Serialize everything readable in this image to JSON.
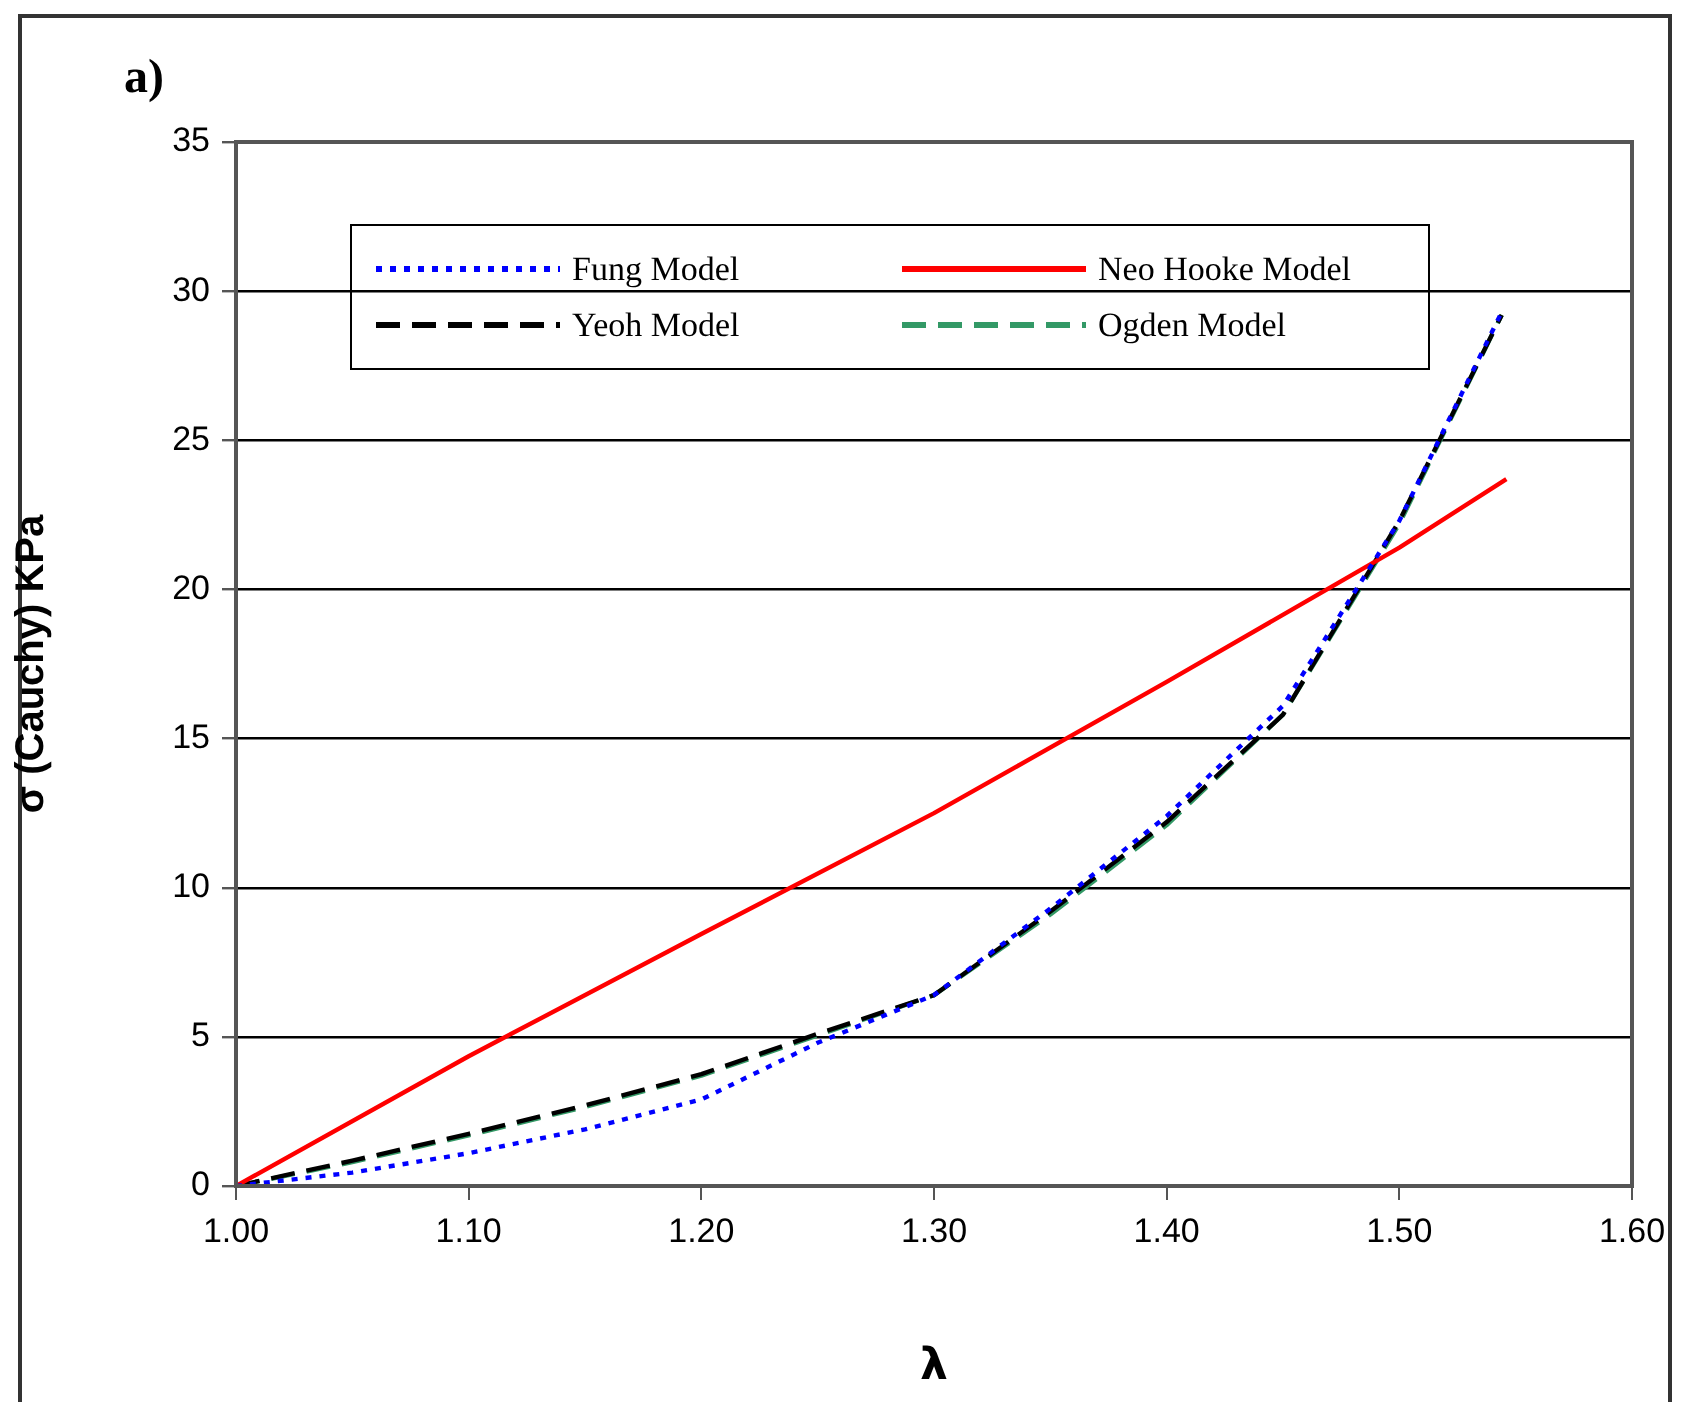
{
  "chart_data": {
    "type": "line",
    "xlabel": "λ",
    "ylabel": "σ (Cauchy) KPa",
    "annotations": [
      "a)"
    ],
    "xlim": [
      1.0,
      1.6
    ],
    "xticks": [
      {
        "value": 1.0,
        "label": "1.00"
      },
      {
        "value": 1.1,
        "label": "1.10"
      },
      {
        "value": 1.2,
        "label": "1.20"
      },
      {
        "value": 1.3,
        "label": "1.30"
      },
      {
        "value": 1.4,
        "label": "1.40"
      },
      {
        "value": 1.5,
        "label": "1.50"
      },
      {
        "value": 1.6,
        "label": "1.60"
      }
    ],
    "ylim": [
      0,
      35
    ],
    "yticks": [
      0,
      5,
      10,
      15,
      20,
      25,
      30,
      35
    ],
    "grid": "y",
    "legend": "top",
    "marker": "none",
    "series": [
      {
        "name": "Fung Model",
        "color": "#0000ff",
        "line_style": "dotted",
        "x": [
          1.0,
          1.05,
          1.1,
          1.15,
          1.2,
          1.25,
          1.3,
          1.35,
          1.4,
          1.45,
          1.5,
          1.544
        ],
        "values": [
          0,
          0.45,
          1.1,
          1.9,
          2.9,
          4.8,
          6.4,
          9.3,
          12.4,
          16.1,
          22.3,
          29.3
        ]
      },
      {
        "name": "Neo Hooke Model",
        "color": "#ff0000",
        "line_style": "solid",
        "x": [
          1.0,
          1.1,
          1.2,
          1.3,
          1.4,
          1.5,
          1.546
        ],
        "values": [
          0,
          4.35,
          8.45,
          12.5,
          16.9,
          21.4,
          23.7
        ]
      },
      {
        "name": "Yeoh Model",
        "color": "#000000",
        "line_style": "dashed",
        "x": [
          1.0,
          1.05,
          1.1,
          1.15,
          1.2,
          1.25,
          1.3,
          1.35,
          1.4,
          1.45,
          1.5,
          1.544
        ],
        "values": [
          0,
          0.85,
          1.75,
          2.7,
          3.75,
          5.1,
          6.4,
          9.2,
          12.2,
          15.8,
          22.3,
          29.2
        ]
      },
      {
        "name": "Ogden Model",
        "color": "#339966",
        "line_style": "dashed",
        "x": [
          1.0,
          1.05,
          1.1,
          1.15,
          1.2,
          1.25,
          1.3,
          1.35,
          1.4,
          1.45,
          1.5,
          1.544
        ],
        "values": [
          0,
          0.8,
          1.7,
          2.65,
          3.7,
          5.05,
          6.4,
          9.1,
          12.1,
          15.8,
          22.2,
          29.2
        ]
      }
    ]
  }
}
